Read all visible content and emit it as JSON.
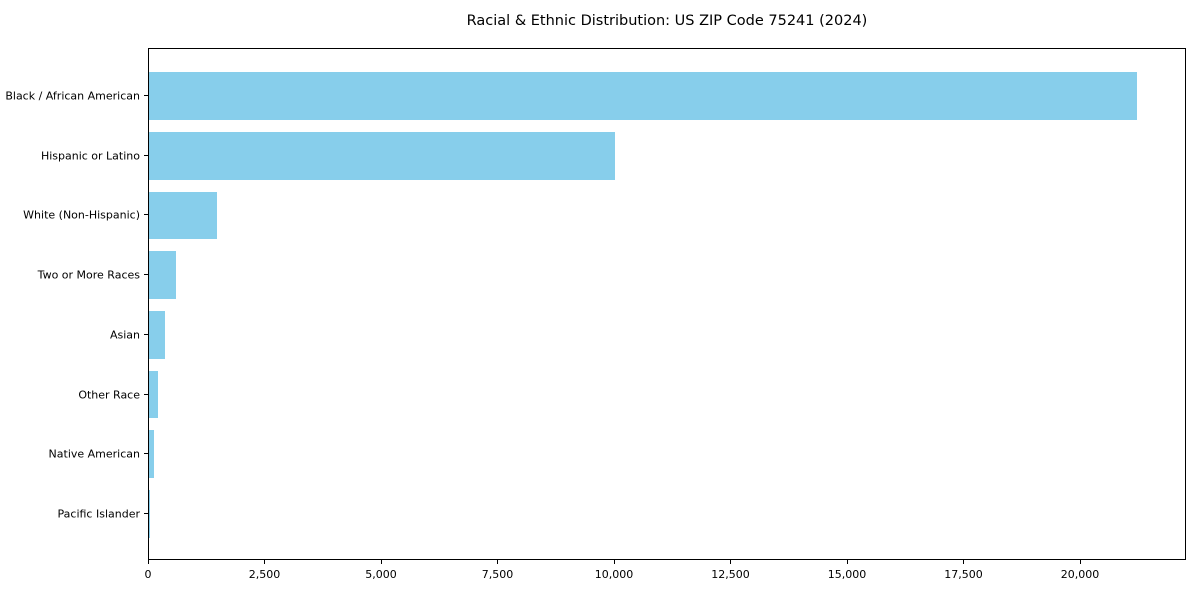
{
  "title": "Racial & Ethnic Distribution: US ZIP Code 75241 (2024)",
  "colors": {
    "bar": "#87CEEB",
    "axis": "#000000",
    "text": "#000000",
    "background": "#ffffff"
  },
  "chart_data": {
    "type": "bar",
    "orientation": "horizontal",
    "title": "Racial & Ethnic Distribution: US ZIP Code 75241 (2024)",
    "categories": [
      "Black / African American",
      "Hispanic or Latino",
      "White (Non-Hispanic)",
      "Two or More Races",
      "Asian",
      "Other Race",
      "Native American",
      "Pacific Islander"
    ],
    "values": [
      21200,
      10000,
      1450,
      580,
      350,
      195,
      110,
      15
    ],
    "xlabel": "",
    "ylabel": "",
    "xlim": [
      0,
      22275
    ],
    "x_ticks": [
      0,
      2500,
      5000,
      7500,
      10000,
      12500,
      15000,
      17500,
      20000
    ],
    "x_tick_labels": [
      "0",
      "2,500",
      "5,000",
      "7,500",
      "10,000",
      "12,500",
      "15,000",
      "17,500",
      "20,000"
    ],
    "grid": false,
    "legend": null,
    "bar_color": "#87CEEB",
    "frame": "full-box"
  }
}
